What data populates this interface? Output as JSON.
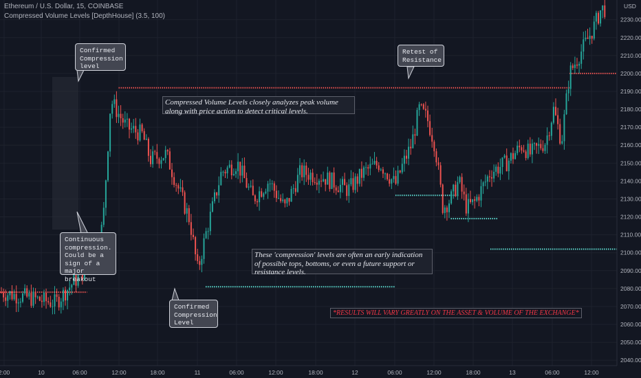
{
  "header": {
    "symbol_line": "Ethereum / U.S. Dollar, 15, COINBASE",
    "indicator_line": "Compressed Volume Levels [DepthHouse] (3.5, 100)"
  },
  "colors": {
    "background": "#131722",
    "up": "#26a69a",
    "down": "#ef5350",
    "resistance": "#ef5350",
    "support": "#5ddbd0",
    "grid": "#1e222d",
    "axis_text": "#b2b5be"
  },
  "callouts": {
    "confirmed_top": "Confirmed\nCompression\nlevel",
    "retest": "Retest of\nResistance",
    "continuous": "Continuous\ncompression.\nCould be a\nsign of a\nmajor breakout",
    "confirmed_bottom": "Confirmed\nCompression\nLevel"
  },
  "notes": {
    "analysis": "Compressed Volume Levels closely analyzes peak volume along with price action to detect critical levels.",
    "compression": "These 'compression' levels are often an early indication of possible tops, bottoms, or even a future support or resistance levels.",
    "disclaimer": "*RESULTS WILL VARY GREATLY ON THE ASSET & VOLUME OF THE EXCHANGE*"
  },
  "chart_data": {
    "type": "candlestick",
    "currency_label": "USD",
    "y_ticks": [
      2040,
      2050,
      2060,
      2070,
      2080,
      2090,
      2100,
      2110,
      2120,
      2130,
      2140,
      2150,
      2160,
      2170,
      2180,
      2190,
      2200,
      2210,
      2220,
      2230
    ],
    "x_ticks": [
      "2:00",
      "10",
      "06:00",
      "12:00",
      "18:00",
      "11",
      "06:00",
      "12:00",
      "18:00",
      "12",
      "06:00",
      "12:00",
      "18:00",
      "13",
      "06:00",
      "12:00"
    ],
    "ylim": [
      2037,
      2241
    ],
    "price_path": [
      [
        0,
        2078
      ],
      [
        7,
        2072
      ],
      [
        11,
        2092
      ],
      [
        13,
        2115
      ],
      [
        14,
        2185
      ],
      [
        16,
        2170
      ],
      [
        18,
        2166
      ],
      [
        19,
        2152
      ],
      [
        21,
        2155
      ],
      [
        24,
        2118
      ],
      [
        25,
        2090
      ],
      [
        26,
        2110
      ],
      [
        28,
        2145
      ],
      [
        30,
        2150
      ],
      [
        32,
        2130
      ],
      [
        34,
        2140
      ],
      [
        36,
        2125
      ],
      [
        38,
        2145
      ],
      [
        41,
        2142
      ],
      [
        44,
        2135
      ],
      [
        46,
        2145
      ],
      [
        48,
        2150
      ],
      [
        50,
        2138
      ],
      [
        51,
        2150
      ],
      [
        52,
        2160
      ],
      [
        53,
        2180
      ],
      [
        54,
        2175
      ],
      [
        55,
        2160
      ],
      [
        56,
        2125
      ],
      [
        57,
        2130
      ],
      [
        58,
        2140
      ],
      [
        59,
        2125
      ],
      [
        60,
        2128
      ],
      [
        62,
        2145
      ],
      [
        64,
        2150
      ],
      [
        66,
        2160
      ],
      [
        67,
        2155
      ],
      [
        69,
        2162
      ],
      [
        70,
        2180
      ],
      [
        71,
        2162
      ],
      [
        72,
        2200
      ],
      [
        75,
        2225
      ],
      [
        76,
        2236
      ]
    ],
    "levels": [
      {
        "kind": "resistance",
        "price": 2078,
        "from_x": 0,
        "to_x": 11
      },
      {
        "kind": "resistance",
        "price": 2192,
        "from_x": 15,
        "to_x": 72
      },
      {
        "kind": "support",
        "price": 2081,
        "from_x": 26,
        "to_x": 50
      },
      {
        "kind": "support",
        "price": 2132,
        "from_x": 50,
        "to_x": 58
      },
      {
        "kind": "support",
        "price": 2119,
        "from_x": 57,
        "to_x": 63
      },
      {
        "kind": "support",
        "price": 2102,
        "from_x": 62,
        "to_x": 78
      },
      {
        "kind": "resistance",
        "price": 2200,
        "from_x": 72,
        "to_x": 78
      }
    ]
  }
}
